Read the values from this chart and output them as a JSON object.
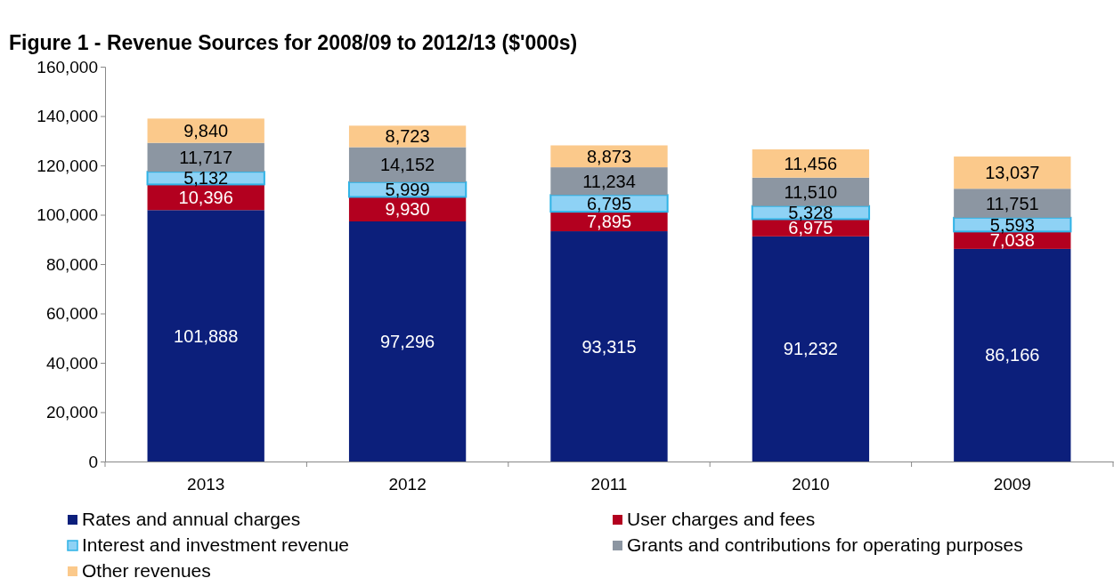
{
  "chart_data": {
    "type": "bar",
    "title": "Figure 1 - Revenue Sources for 2008/09 to 2012/13 ($'000s)",
    "categories": [
      "2013",
      "2012",
      "2011",
      "2010",
      "2009"
    ],
    "stacked": true,
    "legend": "bottom",
    "grid": false,
    "ylim": [
      0,
      160000
    ],
    "yticks": [
      {
        "value": 0,
        "label": "0"
      },
      {
        "value": 20000,
        "label": "20,000"
      },
      {
        "value": 40000,
        "label": "40,000"
      },
      {
        "value": 60000,
        "label": "60,000"
      },
      {
        "value": 80000,
        "label": "80,000"
      },
      {
        "value": 100000,
        "label": "100,000"
      },
      {
        "value": 120000,
        "label": "120,000"
      },
      {
        "value": 140000,
        "label": "140,000"
      },
      {
        "value": 160000,
        "label": "160,000"
      }
    ],
    "series": [
      {
        "name": "Rates and annual charges",
        "color": "#0c1f7b",
        "values": [
          101888,
          97296,
          93315,
          91232,
          86166
        ],
        "value_labels": [
          "101,888",
          "97,296",
          "93,315",
          "91,232",
          "86,166"
        ]
      },
      {
        "name": "User charges and fees",
        "color": "#b3001f",
        "values": [
          10396,
          9930,
          7895,
          6975,
          7038
        ],
        "value_labels": [
          "10,396",
          "9,930",
          "7,895",
          "6,975",
          "7,038"
        ]
      },
      {
        "name": "Interest and investment revenue",
        "color": "#8ed2f5",
        "values": [
          5132,
          5999,
          6795,
          5328,
          5593
        ],
        "value_labels": [
          "5,132",
          "5,999",
          "6,795",
          "5,328",
          "5,593"
        ]
      },
      {
        "name": "Grants and contributions for operating purposes",
        "color": "#8c96a2",
        "values": [
          11717,
          14152,
          11234,
          11510,
          11751
        ],
        "value_labels": [
          "11,717",
          "14,152",
          "11,234",
          "11,510",
          "11,751"
        ]
      },
      {
        "name": "Other revenues",
        "color": "#fbc98b",
        "values": [
          9840,
          8723,
          8873,
          11456,
          13037
        ],
        "value_labels": [
          "9,840",
          "8,723",
          "8,873",
          "11,456",
          "13,037"
        ]
      }
    ]
  }
}
